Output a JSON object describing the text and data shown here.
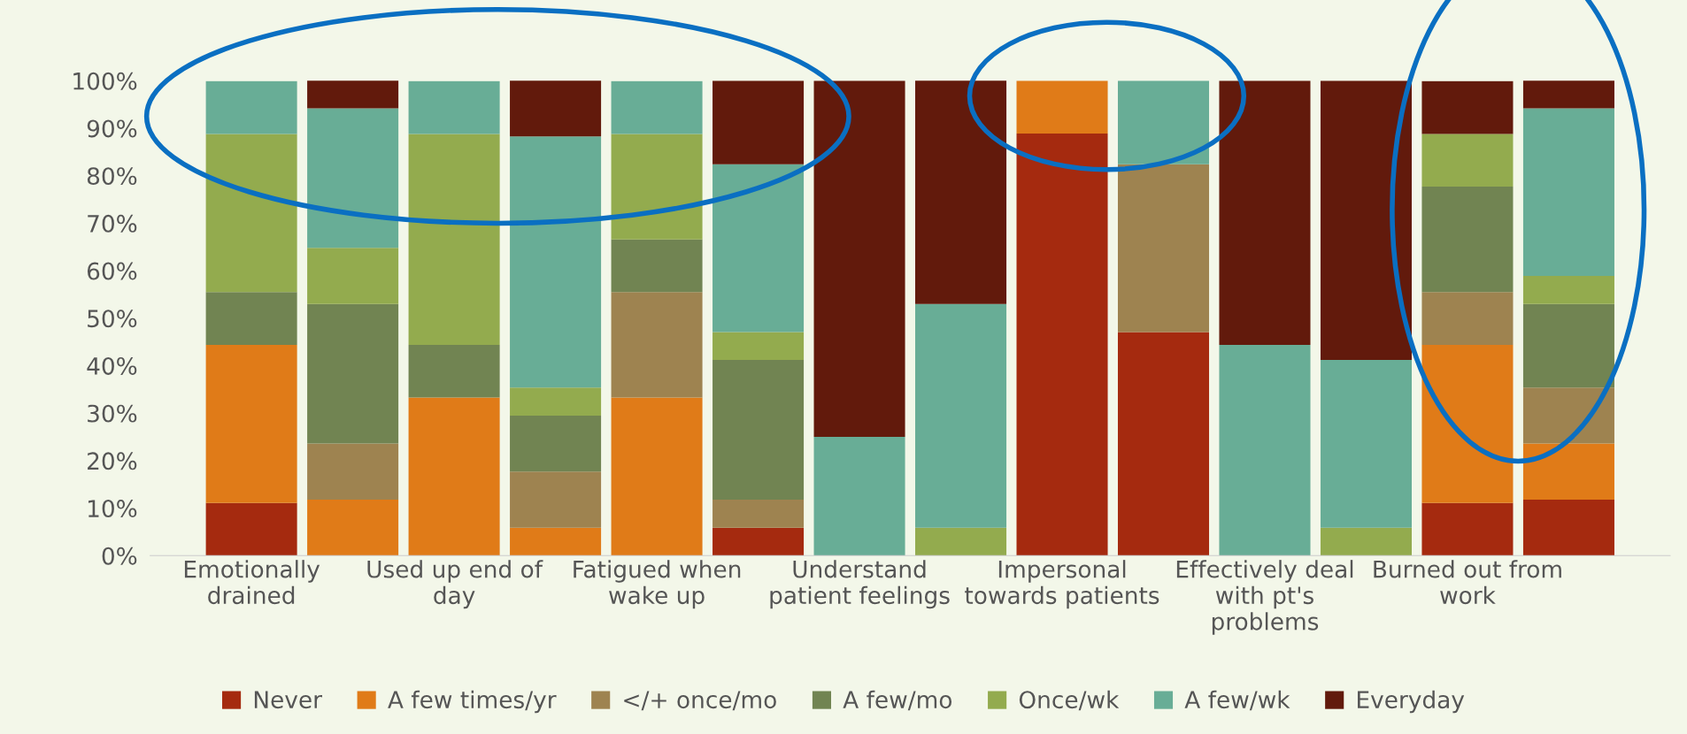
{
  "chart_data": {
    "type": "bar",
    "stacked": true,
    "categories": [
      "Emotionally drained",
      null,
      "Used up end of day",
      null,
      "Fatigued when wake up",
      null,
      "Understand patient feelings",
      null,
      "Impersonal towards patients",
      null,
      "Effectively deal with pt's problems",
      null,
      "Burned out from work",
      null
    ],
    "series": [
      {
        "name": "Never",
        "color": "#a52a0f",
        "values": [
          11.1,
          0,
          0,
          0,
          0,
          5.9,
          0,
          0,
          88.9,
          47.1,
          0,
          0,
          11.1,
          11.8
        ]
      },
      {
        "name": "A few times/yr",
        "color": "#e07b18",
        "values": [
          33.3,
          11.8,
          33.3,
          5.9,
          33.3,
          0,
          0,
          0,
          11.1,
          0,
          0,
          0,
          33.3,
          11.8
        ]
      },
      {
        "name": "</+ once/mo",
        "color": "#9e8350",
        "values": [
          0,
          11.8,
          0,
          11.8,
          22.2,
          5.9,
          0,
          0,
          0,
          35.3,
          0,
          0,
          11.1,
          11.8
        ]
      },
      {
        "name": "A few/mo",
        "color": "#718452",
        "values": [
          11.1,
          29.4,
          11.1,
          11.8,
          11.1,
          29.4,
          0,
          0,
          0,
          0,
          0,
          0,
          22.2,
          17.6
        ]
      },
      {
        "name": "Once/wk",
        "color": "#93ab4e",
        "values": [
          33.3,
          11.8,
          44.4,
          5.9,
          22.2,
          5.9,
          0,
          5.9,
          0,
          0,
          0,
          5.9,
          11.1,
          5.9
        ]
      },
      {
        "name": "A few/wk",
        "color": "#68ad96",
        "values": [
          11.1,
          29.4,
          11.1,
          52.9,
          11.1,
          35.3,
          25,
          47.1,
          0,
          17.6,
          44.4,
          35.3,
          0,
          35.3
        ]
      },
      {
        "name": "Everyday",
        "color": "#621a0c",
        "values": [
          0,
          5.9,
          0,
          11.8,
          0,
          17.6,
          75,
          47.1,
          0,
          0,
          55.6,
          58.8,
          11.1,
          5.9
        ]
      }
    ],
    "ylim": [
      0,
      100
    ],
    "yticks": [
      {
        "value": 0,
        "label": "0%"
      },
      {
        "value": 10,
        "label": "10%"
      },
      {
        "value": 20,
        "label": "20%"
      },
      {
        "value": 30,
        "label": "30%"
      },
      {
        "value": 40,
        "label": "40%"
      },
      {
        "value": 50,
        "label": "50%"
      },
      {
        "value": 60,
        "label": "60%"
      },
      {
        "value": 70,
        "label": "70%"
      },
      {
        "value": 80,
        "label": "80%"
      },
      {
        "value": 90,
        "label": "90%"
      },
      {
        "value": 100,
        "label": "100%"
      }
    ],
    "grid": false,
    "legend": "bottom"
  }
}
